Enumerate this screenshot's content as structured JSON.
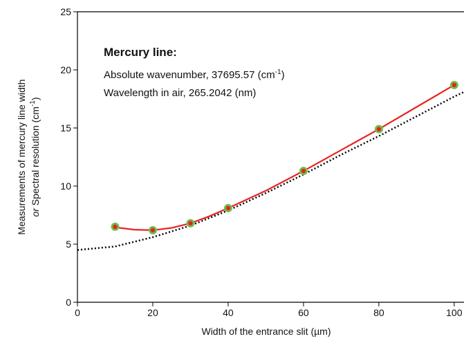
{
  "chart_data": {
    "type": "line",
    "xlabel": "Width of the entrance slit (µm)",
    "ylabel": [
      "Measurements of mercury line width",
      "or",
      " Spectral resolution (cm",
      "-1",
      ")"
    ],
    "annotation": {
      "title": "Mercury line:",
      "wavenumber": [
        "Absolute wavenumber,  37695.57 (cm",
        "-1",
        ")"
      ],
      "wavelength": "Wavelength in air,  265.2042 (nm)"
    },
    "xlim": [
      0,
      102.6
    ],
    "xticks": [
      0,
      20,
      40,
      60,
      80,
      100
    ],
    "ylim": [
      0,
      25
    ],
    "yticks": [
      0,
      5,
      10,
      15,
      20,
      25
    ],
    "series": [
      {
        "style": "dotted",
        "color": "#000000",
        "x": [
          0,
          10,
          20,
          30,
          40,
          50,
          60,
          70,
          80,
          90,
          100,
          102.6
        ],
        "values": [
          4.5,
          4.8,
          5.6,
          6.6,
          7.9,
          9.4,
          11.0,
          12.7,
          14.3,
          16.0,
          17.7,
          18.1
        ]
      },
      {
        "style": "line",
        "color": "#e8231f",
        "x": [
          10,
          15,
          20,
          25,
          30,
          35,
          40,
          50,
          60,
          70,
          80,
          90,
          100
        ],
        "values": [
          6.45,
          6.25,
          6.2,
          6.4,
          6.8,
          7.4,
          8.1,
          9.6,
          11.3,
          13.1,
          14.9,
          16.8,
          18.7
        ]
      },
      {
        "style": "markers",
        "color": "#6dbf4b",
        "edge_color": "#e8231f",
        "x": [
          10,
          20,
          30,
          40,
          60,
          80,
          100
        ],
        "values": [
          6.5,
          6.2,
          6.8,
          8.1,
          11.3,
          14.9,
          18.7
        ]
      }
    ]
  }
}
